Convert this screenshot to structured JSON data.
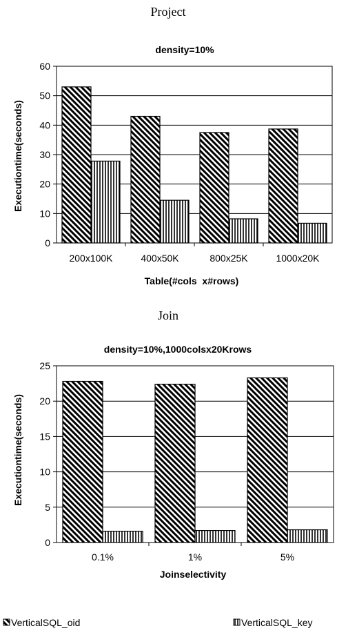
{
  "page": {
    "section_titles": [
      "Project",
      "Join"
    ]
  },
  "chart_data": [
    {
      "type": "bar",
      "title": "density=10%",
      "xlabel": "Table(#cols  x#rows)",
      "ylabel": "Executiontime(seconds)",
      "categories": [
        "200x100K",
        "400x50K",
        "800x25K",
        "1000x20K"
      ],
      "series": [
        {
          "name": "VerticalSQL_oid",
          "values": [
            53,
            43,
            37.5,
            38.7
          ]
        },
        {
          "name": "VerticalSQL_key",
          "values": [
            27.8,
            14.5,
            8.2,
            6.7
          ]
        }
      ],
      "ylim": [
        0,
        60
      ],
      "yticks": [
        0,
        10,
        20,
        30,
        40,
        50,
        60
      ],
      "grid": true
    },
    {
      "type": "bar",
      "title": "density=10%,1000colsx20Krows",
      "xlabel": "Joinselectivity",
      "ylabel": "Executiontime(seconds)",
      "categories": [
        "0.1%",
        "1%",
        "5%"
      ],
      "series": [
        {
          "name": "VerticalSQL_oid",
          "values": [
            22.8,
            22.4,
            23.3
          ]
        },
        {
          "name": "VerticalSQL_key",
          "values": [
            1.6,
            1.7,
            1.8
          ]
        }
      ],
      "ylim": [
        0,
        25
      ],
      "yticks": [
        0,
        5,
        10,
        15,
        20,
        25
      ],
      "grid": true
    }
  ],
  "legend": {
    "placement": "bottom",
    "items": [
      {
        "label": "VerticalSQL_oid",
        "pattern": "diagonal-hatch"
      },
      {
        "label": "VerticalSQL_key",
        "pattern": "vertical-hatch"
      }
    ]
  }
}
